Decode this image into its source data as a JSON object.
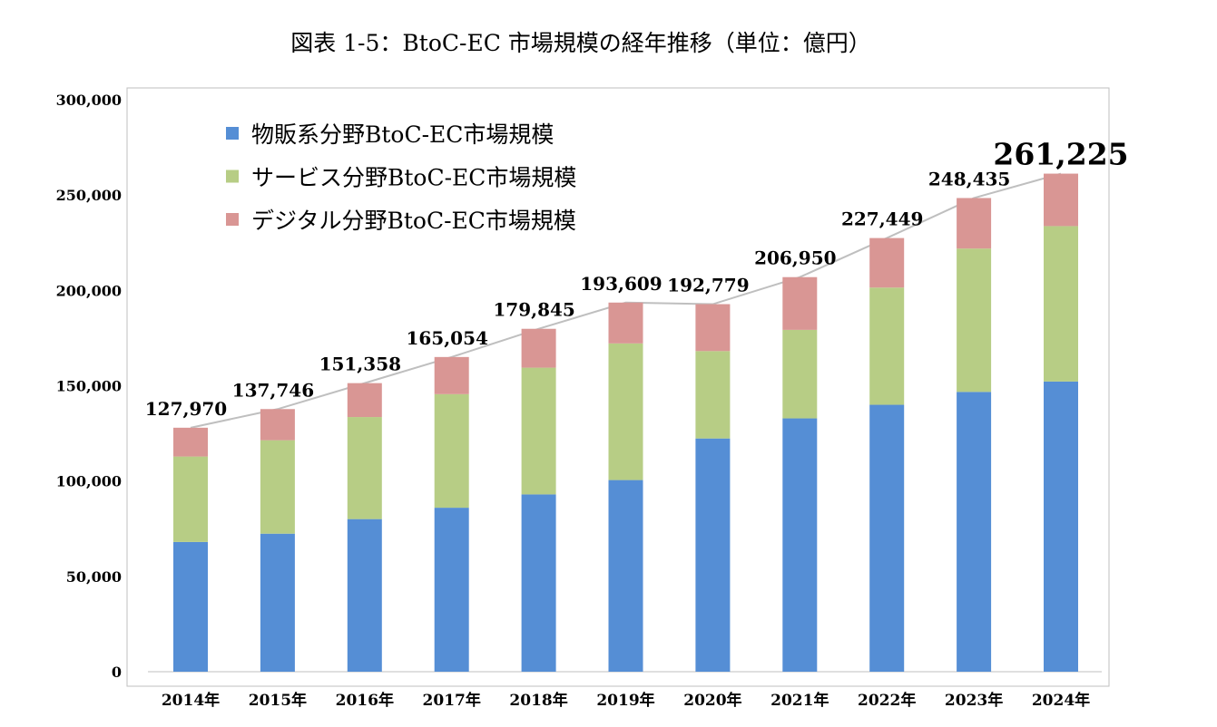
{
  "chart_data": {
    "type": "bar",
    "stacked": true,
    "title": "図表 1-5：BtoC-EC 市場規模の経年推移（単位：億円）",
    "categories": [
      "2014年",
      "2015年",
      "2016年",
      "2017年",
      "2018年",
      "2019年",
      "2020年",
      "2021年",
      "2022年",
      "2023年",
      "2024年"
    ],
    "series": [
      {
        "name": "物販系分野BtoC-EC市場規模",
        "color": "#558ed5",
        "values": [
          68043,
          72398,
          80043,
          86008,
          92992,
          100515,
          122333,
          132865,
          139997,
          146760,
          152194
        ]
      },
      {
        "name": "サービス分野BtoC-EC市場規模",
        "color": "#b7cd85",
        "values": [
          44816,
          49014,
          53532,
          59568,
          66471,
          71672,
          45832,
          46424,
          61477,
          75169,
          81522
        ]
      },
      {
        "name": "デジタル分野BtoC-EC市場規模",
        "color": "#d99694",
        "values": [
          15111,
          16334,
          17782,
          19478,
          20382,
          21422,
          24614,
          27661,
          25974,
          26506,
          27509
        ]
      }
    ],
    "totals": [
      127970,
      137746,
      151358,
      165054,
      179845,
      193609,
      192779,
      206950,
      227449,
      248435,
      261225
    ],
    "total_labels": [
      "127,970",
      "137,746",
      "151,358",
      "165,054",
      "179,845",
      "193,609",
      "192,779",
      "206,950",
      "227,449",
      "248,435",
      "261,225"
    ],
    "ylim": [
      0,
      300000
    ],
    "yticks": [
      0,
      50000,
      100000,
      150000,
      200000,
      250000,
      300000
    ],
    "ytick_labels": [
      "0",
      "50,000",
      "100,000",
      "150,000",
      "200,000",
      "250,000",
      "300,000"
    ],
    "legend_position": "top-left",
    "grid": false
  }
}
